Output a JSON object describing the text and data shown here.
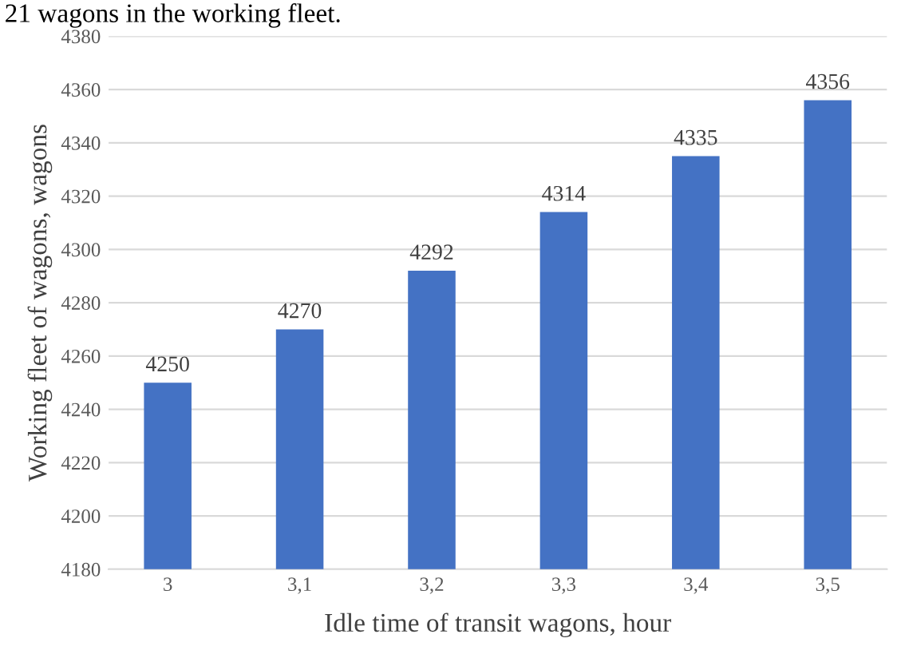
{
  "chart_data": {
    "type": "bar",
    "xlabel": "Idle time of transit wagons, hour",
    "ylabel": "Working fleet of wagons, wagons",
    "annotations": [
      "21 wagons in the working fleet."
    ],
    "categories": [
      "3",
      "3,1",
      "3,2",
      "3,3",
      "3,4",
      "3,5"
    ],
    "values": [
      4250,
      4270,
      4292,
      4314,
      4335,
      4356
    ],
    "color": "#4472c4",
    "data_labels": true,
    "ylim": [
      4180,
      4380
    ],
    "yticks": [
      4180,
      4200,
      4220,
      4240,
      4260,
      4280,
      4300,
      4320,
      4340,
      4360,
      4380
    ],
    "grid": "y",
    "legend": false
  }
}
